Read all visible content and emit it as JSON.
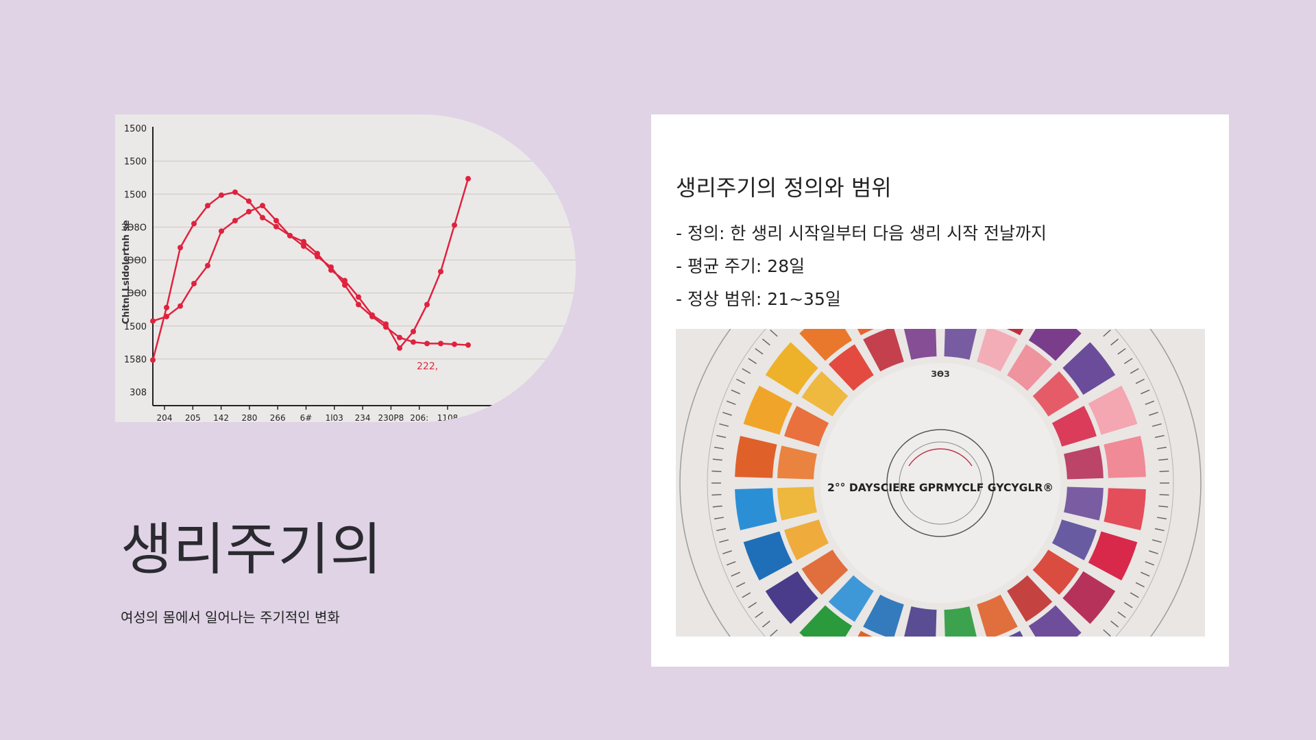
{
  "slide": {
    "title": "생리주기의",
    "subtitle": "여성의 몸에서 일어나는 주기적인 변화"
  },
  "info_card": {
    "heading": "생리주기의 정의와 범위",
    "bullets": [
      "- 정의: 한 생리 시작일부터 다음 생리 시작 전날까지",
      "- 평균 주기: 28일",
      "- 정상 범위: 21~35일"
    ]
  },
  "illustration_wheel": {
    "center_text": "2°° DAYSCIERE GPRMYCLF GYCYGLR®",
    "top_label": "ЗӨЗ"
  },
  "colors": {
    "background": "#dfd3e5",
    "chart_line": "#e0223f",
    "card": "#ffffff"
  },
  "chart_data": {
    "type": "line",
    "ylabel": "Chitnl Lsldolertnh se",
    "y_ticks": [
      "1500",
      "1500",
      "1500",
      "ЗӨ8О",
      "ӨӨ0",
      "ӨӨ0",
      "1500",
      "1580",
      "308"
    ],
    "x_ticks": [
      "204",
      "205",
      "142",
      "280",
      "266",
      "6# ",
      "1l03",
      "234",
      "230P8",
      "206:",
      "1108"
    ],
    "annotation": "222,",
    "x": [
      0,
      1,
      2,
      3,
      4,
      5,
      6,
      7,
      8,
      9,
      10,
      11,
      12,
      13,
      14,
      15,
      16,
      17,
      18,
      19,
      20,
      21,
      22,
      23
    ],
    "ylim": [
      0,
      1600
    ],
    "series": [
      {
        "values": [
          190,
          540,
          940,
          1100,
          1220,
          1290,
          1310,
          1250,
          1140,
          1080,
          1020,
          980,
          900,
          790,
          720,
          610,
          490,
          430,
          270,
          380,
          560,
          780,
          1090,
          1400
        ]
      },
      {
        "values": [
          450,
          480,
          550,
          700,
          820,
          1050,
          1120,
          1180,
          1220,
          1120,
          1020,
          950,
          880,
          810,
          690,
          560,
          480,
          410,
          340,
          310,
          300,
          300,
          295,
          290
        ]
      }
    ]
  }
}
